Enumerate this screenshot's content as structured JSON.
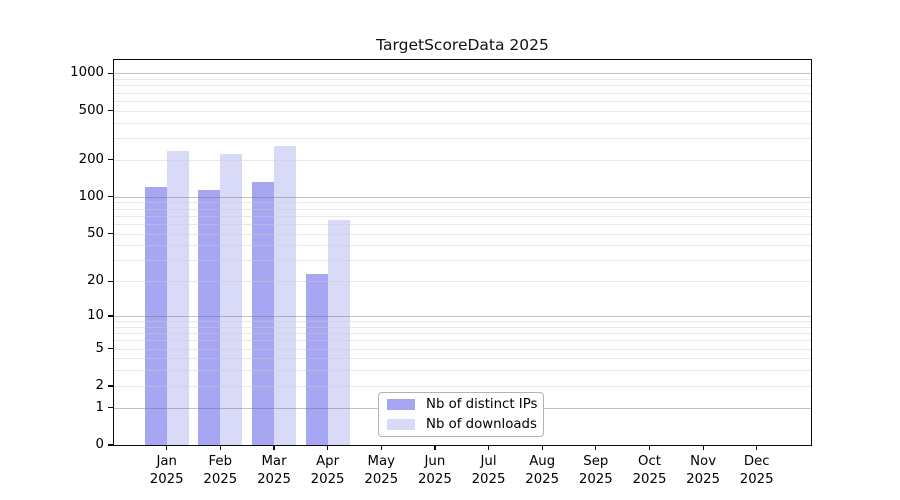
{
  "title": "TargetScoreData 2025",
  "chart_data": {
    "type": "bar",
    "title": "TargetScoreData 2025",
    "categories": [
      "Jan",
      "Feb",
      "Mar",
      "Apr",
      "May",
      "Jun",
      "Jul",
      "Aug",
      "Sep",
      "Oct",
      "Nov",
      "Dec"
    ],
    "x_year_label": "2025",
    "series": [
      {
        "name": "Nb of distinct IPs",
        "color": "#a6a6f2",
        "values": [
          120,
          113,
          131,
          23,
          0,
          0,
          0,
          0,
          0,
          0,
          0,
          0
        ]
      },
      {
        "name": "Nb of downloads",
        "color": "#d9d9f8",
        "values": [
          235,
          223,
          257,
          64,
          0,
          0,
          0,
          0,
          0,
          0,
          0,
          0
        ]
      }
    ],
    "y_axis": {
      "scale": "log10(value+1)",
      "tick_labels": [
        1000,
        500,
        200,
        100,
        50,
        20,
        10,
        5,
        2,
        1,
        0
      ],
      "major_gridlines": [
        1,
        10,
        100,
        1000
      ],
      "minor_gridlines": [
        2,
        3,
        4,
        5,
        6,
        7,
        8,
        9,
        20,
        30,
        40,
        50,
        60,
        70,
        80,
        90,
        200,
        300,
        400,
        500,
        600,
        700,
        800,
        900
      ],
      "ylim": [
        0,
        1282
      ]
    },
    "xlabel": "",
    "ylabel": "",
    "grid": true,
    "legend_position": "inside-bottom-center"
  },
  "colors": {
    "background": "#ffffff",
    "axis": "#0a0a0a",
    "major_grid": "#c2c2c2",
    "minor_grid": "#e9e9e9",
    "legend_border": "#b3b3b3",
    "bar_distinct_ips": "#a6a6f2",
    "bar_downloads": "#d9d9f8"
  }
}
